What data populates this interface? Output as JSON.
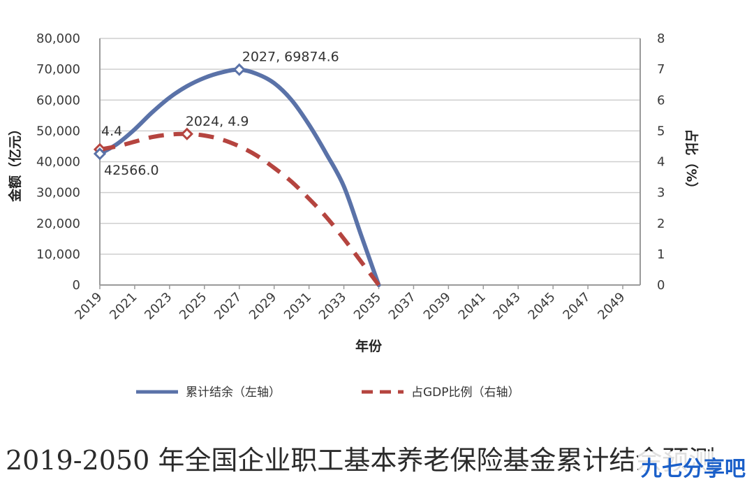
{
  "chart_data": {
    "type": "line",
    "x_ticks": [
      "2019",
      "2021",
      "2023",
      "2025",
      "2027",
      "2029",
      "2031",
      "2033",
      "2035",
      "2037",
      "2039",
      "2041",
      "2043",
      "2045",
      "2047",
      "2049"
    ],
    "left_axis": {
      "label": "金额（亿元）",
      "ylim": [
        0,
        80000
      ],
      "ticks": [
        "0",
        "10,000",
        "20,000",
        "30,000",
        "40,000",
        "50,000",
        "60,000",
        "70,000",
        "80,000"
      ]
    },
    "right_axis": {
      "label": "占比（%）",
      "ylim": [
        0,
        8
      ],
      "ticks": [
        "0",
        "1",
        "2",
        "3",
        "4",
        "5",
        "6",
        "7",
        "8"
      ]
    },
    "xlabel": "年份",
    "series": [
      {
        "name": "累计结余（左轴）",
        "axis": "left",
        "color": "#5a72a8",
        "style": "solid",
        "x": [
          2019,
          2020,
          2021,
          2022,
          2023,
          2024,
          2025,
          2026,
          2027,
          2028,
          2029,
          2030,
          2031,
          2032,
          2033,
          2034,
          2035
        ],
        "y": [
          42566.0,
          45800,
          50500,
          56000,
          60800,
          64500,
          67200,
          69000,
          69874.6,
          68500,
          65500,
          60000,
          52000,
          42500,
          32000,
          16000,
          0
        ]
      },
      {
        "name": "占GDP比例（右轴）",
        "axis": "right",
        "color": "#b5443f",
        "style": "dashed",
        "x": [
          2019,
          2020,
          2021,
          2022,
          2023,
          2024,
          2025,
          2026,
          2027,
          2028,
          2029,
          2030,
          2031,
          2032,
          2033,
          2034,
          2035
        ],
        "y": [
          4.4,
          4.5,
          4.65,
          4.8,
          4.88,
          4.9,
          4.85,
          4.72,
          4.5,
          4.2,
          3.8,
          3.35,
          2.8,
          2.2,
          1.5,
          0.75,
          0
        ]
      }
    ],
    "annotations": [
      {
        "text": "2027, 69874.6",
        "series": 0,
        "x": 2027,
        "y": 69874.6
      },
      {
        "text": "2024, 4.9",
        "series": 1,
        "x": 2024,
        "y": 4.9
      },
      {
        "text": "4.4",
        "series": 1,
        "x": 2019,
        "y": 4.4
      },
      {
        "text": "42566.0",
        "series": 0,
        "x": 2019,
        "y": 42566.0
      }
    ],
    "legend": "bottom",
    "grid": true
  },
  "caption": "2019-2050 年全国企业职工基本养老保险基金累计结余预测",
  "watermark": "九七分享吧"
}
